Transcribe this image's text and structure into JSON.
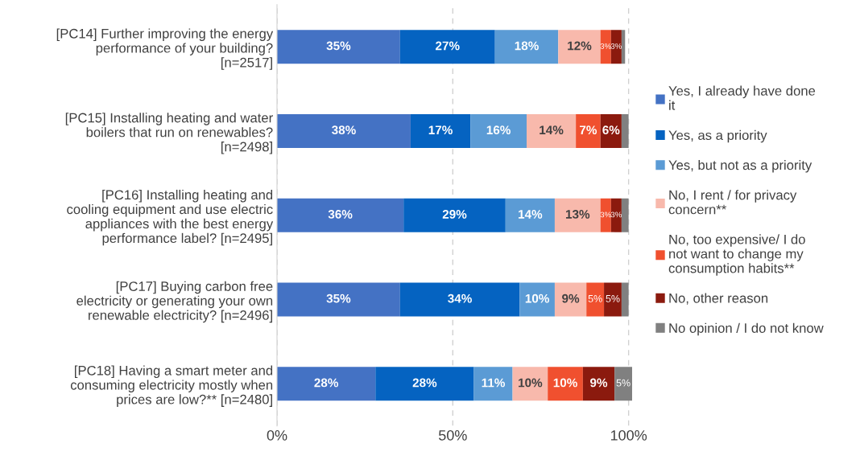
{
  "chart_data": {
    "type": "bar",
    "orientation": "horizontal",
    "stacked": true,
    "categories": [
      "[PC14] Further improving the energy performance of your building? [n=2517]",
      "[PC15] Installing heating and water boilers that run on renewables? [n=2498]",
      "[PC16] Installing heating and cooling equipment and use electric appliances with the best energy performance label? [n=2495]",
      "[PC17] Buying carbon free electricity or generating your own renewable electricity? [n=2496]",
      "[PC18] Having a smart meter and consuming electricity mostly when prices are low?** [n=2480]"
    ],
    "series": [
      {
        "name": "Yes, I already have done it",
        "color": "#4472c4",
        "values": [
          35,
          38,
          36,
          35,
          28
        ],
        "value_labels": [
          "35%",
          "38%",
          "36%",
          "35%",
          "28%"
        ]
      },
      {
        "name": "Yes, as a priority",
        "color": "#0563c1",
        "values": [
          27,
          17,
          29,
          34,
          28
        ],
        "value_labels": [
          "27%",
          "17%",
          "29%",
          "34%",
          "28%"
        ]
      },
      {
        "name": "Yes, but not as a priority",
        "color": "#5b9bd5",
        "values": [
          18,
          16,
          14,
          10,
          11
        ],
        "value_labels": [
          "18%",
          "16%",
          "14%",
          "10%",
          "11%"
        ]
      },
      {
        "name": "No, I rent / for privacy concern**",
        "color": "#f8b9ac",
        "values": [
          12,
          14,
          13,
          9,
          10
        ],
        "value_labels": [
          "12%",
          "14%",
          "13%",
          "9%",
          "10%"
        ]
      },
      {
        "name": "No, too expensive/ I do not want to change my consumption habits**",
        "color": "#f0502f",
        "values": [
          3,
          7,
          3,
          5,
          10
        ],
        "value_labels": [
          "3%",
          "7%",
          "3%",
          "5%",
          "10%"
        ]
      },
      {
        "name": "No, other reason",
        "color": "#8b1a0e",
        "values": [
          3,
          6,
          3,
          5,
          9
        ],
        "value_labels": [
          "3%",
          "6%",
          "3%",
          "5%",
          "9%"
        ]
      },
      {
        "name": "No opinion / I do not know",
        "color": "#808080",
        "values": [
          1,
          2,
          2,
          2,
          5
        ],
        "value_labels": [
          null,
          null,
          null,
          null,
          "5%"
        ]
      }
    ],
    "xlim": [
      0,
      101
    ],
    "xticks": [
      {
        "value": 0,
        "label": "0%"
      },
      {
        "value": 50,
        "label": "50%"
      },
      {
        "value": 100,
        "label": "100%"
      }
    ],
    "grid": "x",
    "legend": "right"
  }
}
